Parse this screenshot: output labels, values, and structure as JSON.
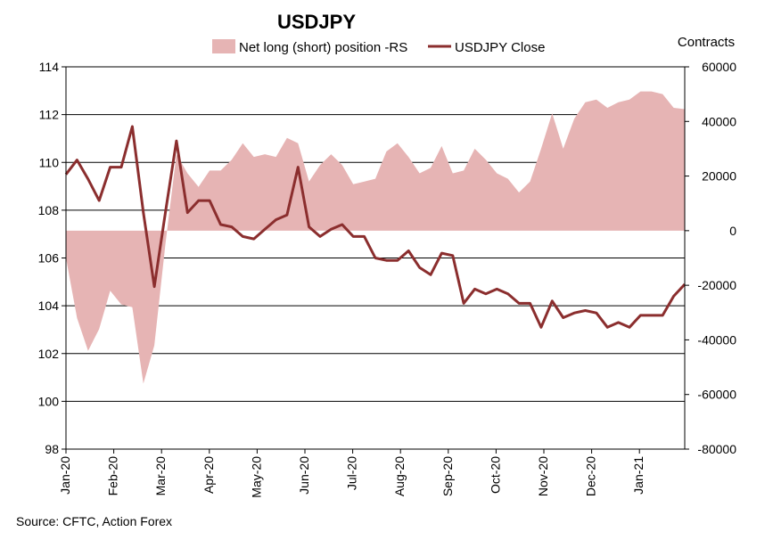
{
  "chart_data": {
    "type": "line",
    "title": "USDJPY",
    "right_axis_label": "Contracts",
    "source": "Source: CFTC, Action Forex",
    "x_tick_labels": [
      "Jan-20",
      "Feb-20",
      "Mar-20",
      "Apr-20",
      "May-20",
      "Jun-20",
      "Jul-20",
      "Aug-20",
      "Sep-20",
      "Oct-20",
      "Nov-20",
      "Dec-20",
      "Jan-21"
    ],
    "ylim_left": [
      98,
      114
    ],
    "yticks_left": [
      98,
      100,
      102,
      104,
      106,
      108,
      110,
      112,
      114
    ],
    "ylim_right": [
      -80000,
      60000
    ],
    "yticks_right": [
      "-80000",
      "-60000",
      "-40000",
      "-20000",
      "0",
      "20000",
      "40000",
      "60000"
    ],
    "grid": "horizontal",
    "legend_position": "top",
    "colors": {
      "area": "#e6b4b4",
      "line": "#8b2e2e",
      "grid": "#000000"
    },
    "series": [
      {
        "name": "Net long (short) position -RS",
        "type": "area",
        "axis": "right",
        "values": [
          -10000,
          -32000,
          -44000,
          -36000,
          -22000,
          -27000,
          -28000,
          -56000,
          -42000,
          -5000,
          28000,
          21000,
          16000,
          22000,
          22000,
          26000,
          32000,
          27000,
          28000,
          27000,
          34000,
          32000,
          18000,
          24000,
          28000,
          24000,
          17000,
          18000,
          19000,
          29000,
          32000,
          27000,
          21000,
          23000,
          31000,
          21000,
          22000,
          30000,
          26000,
          21000,
          19000,
          14000,
          18000,
          30000,
          43000,
          30000,
          41000,
          47000,
          48000,
          45000,
          47000,
          48000,
          51000,
          51000,
          50000,
          45000,
          44500
        ]
      },
      {
        "name": "USDJPY Close",
        "type": "line",
        "axis": "left",
        "values": [
          109.5,
          110.1,
          109.3,
          108.4,
          109.8,
          109.8,
          111.5,
          107.9,
          104.8,
          107.9,
          110.9,
          107.9,
          108.4,
          108.4,
          107.4,
          107.3,
          106.9,
          106.8,
          107.2,
          107.6,
          107.8,
          109.8,
          107.3,
          106.9,
          107.2,
          107.4,
          106.9,
          106.9,
          106.0,
          105.9,
          105.9,
          106.3,
          105.6,
          105.3,
          106.2,
          106.1,
          104.1,
          104.7,
          104.5,
          104.7,
          104.5,
          104.1,
          104.1,
          103.1,
          104.2,
          103.5,
          103.7,
          103.8,
          103.7,
          103.1,
          103.3,
          103.1,
          103.6,
          103.6,
          103.6,
          104.4,
          104.9
        ]
      }
    ]
  }
}
